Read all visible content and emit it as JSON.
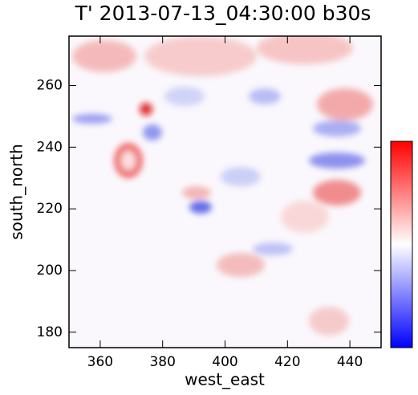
{
  "chart_data": {
    "type": "heatmap",
    "title": "T' 2013-07-13_04:30:00 b30s",
    "x_label": "west_east",
    "y_label": "south_north",
    "xlim": [
      350,
      450
    ],
    "ylim": [
      175,
      276
    ],
    "xticks": [
      360,
      380,
      400,
      420,
      440
    ],
    "yticks": [
      180,
      200,
      220,
      240,
      260
    ],
    "colormap": [
      "#0000ff",
      "#ffffff",
      "#ff0000"
    ]
  }
}
